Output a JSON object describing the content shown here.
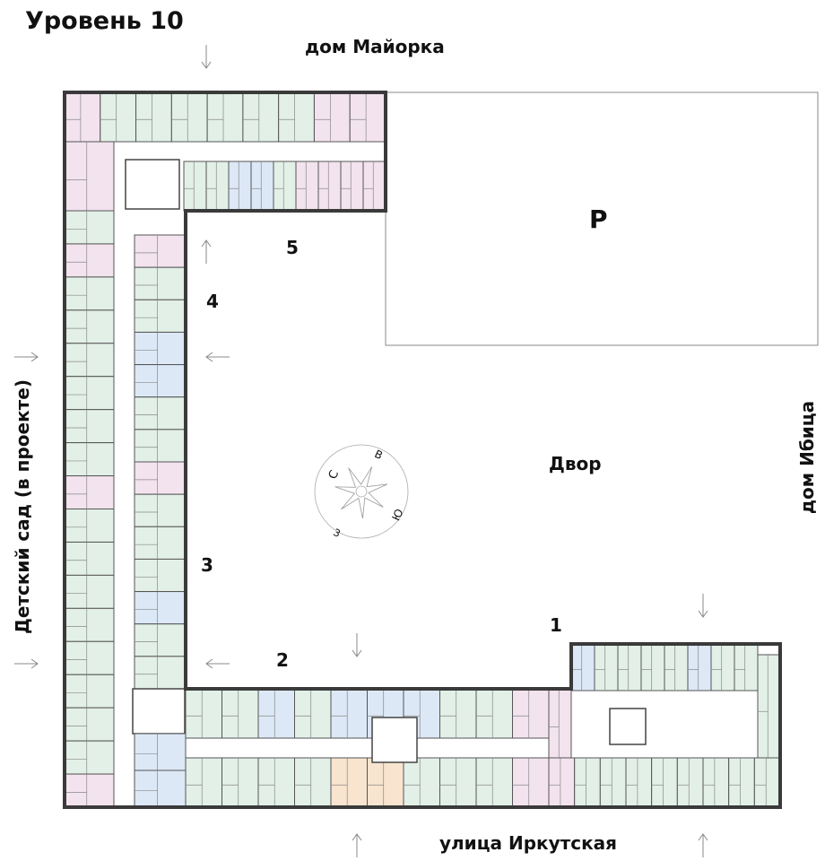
{
  "title": "Уровень 10",
  "surroundings": {
    "north": "дом Майорка",
    "east": "дом Ибица",
    "south": "улица Иркутская",
    "west": "Детский сад (в проекте)",
    "courtyard": "Двор",
    "parking": "P"
  },
  "sections": [
    "1",
    "2",
    "3",
    "4",
    "5"
  ],
  "compass": {
    "north": "С",
    "east": "В",
    "south": "Ю",
    "west": "З"
  },
  "colors": {
    "one_room": "#e2f0e7",
    "three_room": "#f3e3ee",
    "studio": "#dce8f6",
    "special": "#f8e4cf",
    "walls": "#3a3a3a"
  }
}
